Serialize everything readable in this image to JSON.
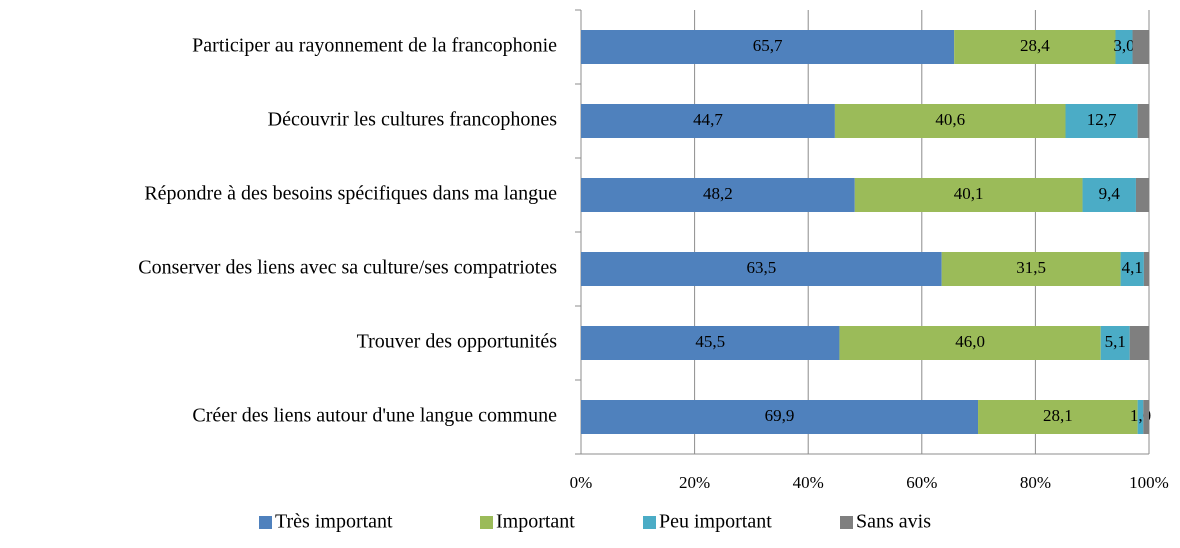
{
  "chart_data": {
    "type": "stacked_bar_horizontal",
    "categories": [
      "Participer au rayonnement de la francophonie",
      "Découvrir les cultures francophones",
      "Répondre à des besoins spécifiques dans ma langue",
      "Conserver des liens avec sa culture/ses compatriotes",
      "Trouver des opportunités",
      "Créer des liens autour d'une langue commune"
    ],
    "series": [
      {
        "name": "Très important",
        "color": "#4f81bd",
        "values": [
          65.7,
          44.7,
          48.2,
          63.5,
          45.5,
          69.9
        ],
        "value_labels": [
          "65,7",
          "44,7",
          "48,2",
          "63,5",
          "45,5",
          "69,9"
        ]
      },
      {
        "name": "Important",
        "color": "#9bbb59",
        "values": [
          28.4,
          40.6,
          40.1,
          31.5,
          46.0,
          28.1
        ],
        "value_labels": [
          "28,4",
          "40,6",
          "40,1",
          "31,5",
          "46,0",
          "28,1"
        ]
      },
      {
        "name": "Peu important",
        "color": "#4bacc6",
        "values": [
          3.0,
          12.7,
          9.4,
          4.1,
          5.1,
          1.0
        ],
        "value_labels": [
          "3,0",
          "12,7",
          "9,4",
          "4,1",
          "5,1",
          "1,0"
        ]
      },
      {
        "name": "Sans avis",
        "color": "#7f7f7f",
        "values": [
          2.9,
          2.0,
          2.3,
          0.9,
          3.4,
          1.0
        ]
      }
    ],
    "xlim": [
      0,
      100
    ],
    "xticks": [
      {
        "value": 0,
        "label": "0%"
      },
      {
        "value": 20,
        "label": "20%"
      },
      {
        "value": 40,
        "label": "40%"
      },
      {
        "value": 60,
        "label": "60%"
      },
      {
        "value": 80,
        "label": "80%"
      },
      {
        "value": 100,
        "label": "100%"
      }
    ],
    "grid": true,
    "legend": "bottom"
  }
}
